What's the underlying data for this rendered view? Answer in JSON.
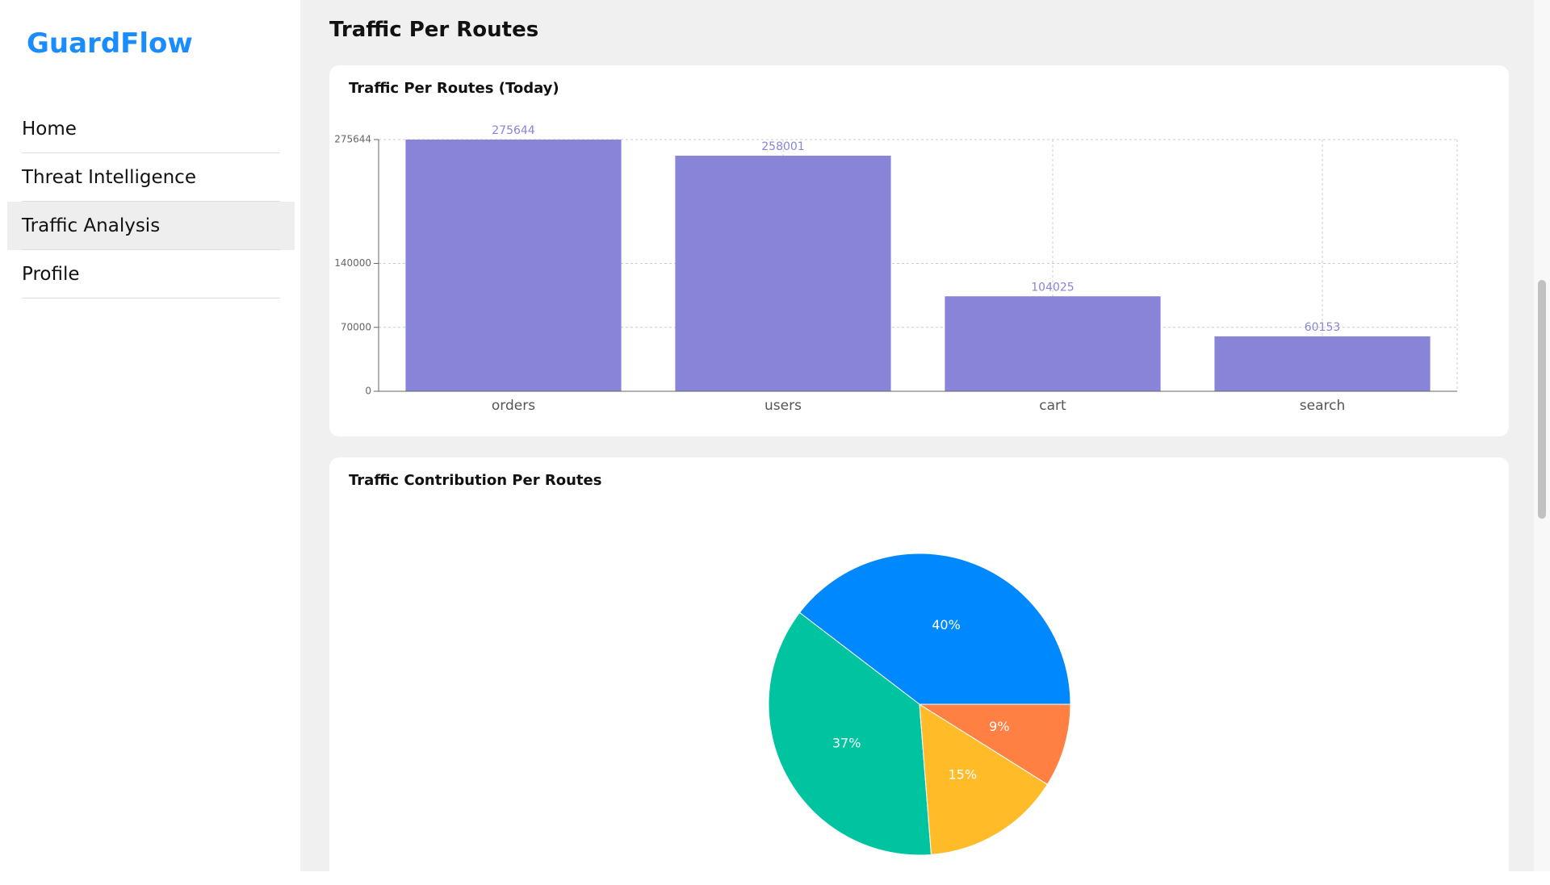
{
  "sidebar": {
    "brand": "GuardFlow",
    "nav": [
      "Home",
      "Threat Intelligence",
      "Traffic Analysis",
      "Profile"
    ]
  },
  "page_title": "Traffic Per Routes",
  "chart_data": [
    {
      "type": "bar",
      "title": "Traffic Per Routes (Today)",
      "categories": [
        "orders",
        "users",
        "cart",
        "search"
      ],
      "values": [
        275644,
        258001,
        104025,
        60153
      ],
      "color": "#8884d8",
      "ylim": [
        0,
        275644
      ],
      "yticks": [
        0,
        70000,
        140000,
        275644
      ],
      "grid": true
    },
    {
      "type": "pie",
      "title": "Traffic Contribution Per Routes",
      "values": [
        40,
        37,
        15,
        9
      ],
      "value_labels": [
        "40%",
        "37%",
        "15%",
        "9%"
      ],
      "colors": [
        "#0088FE",
        "#00C49F",
        "#FFBB28",
        "#FF8042"
      ]
    }
  ]
}
